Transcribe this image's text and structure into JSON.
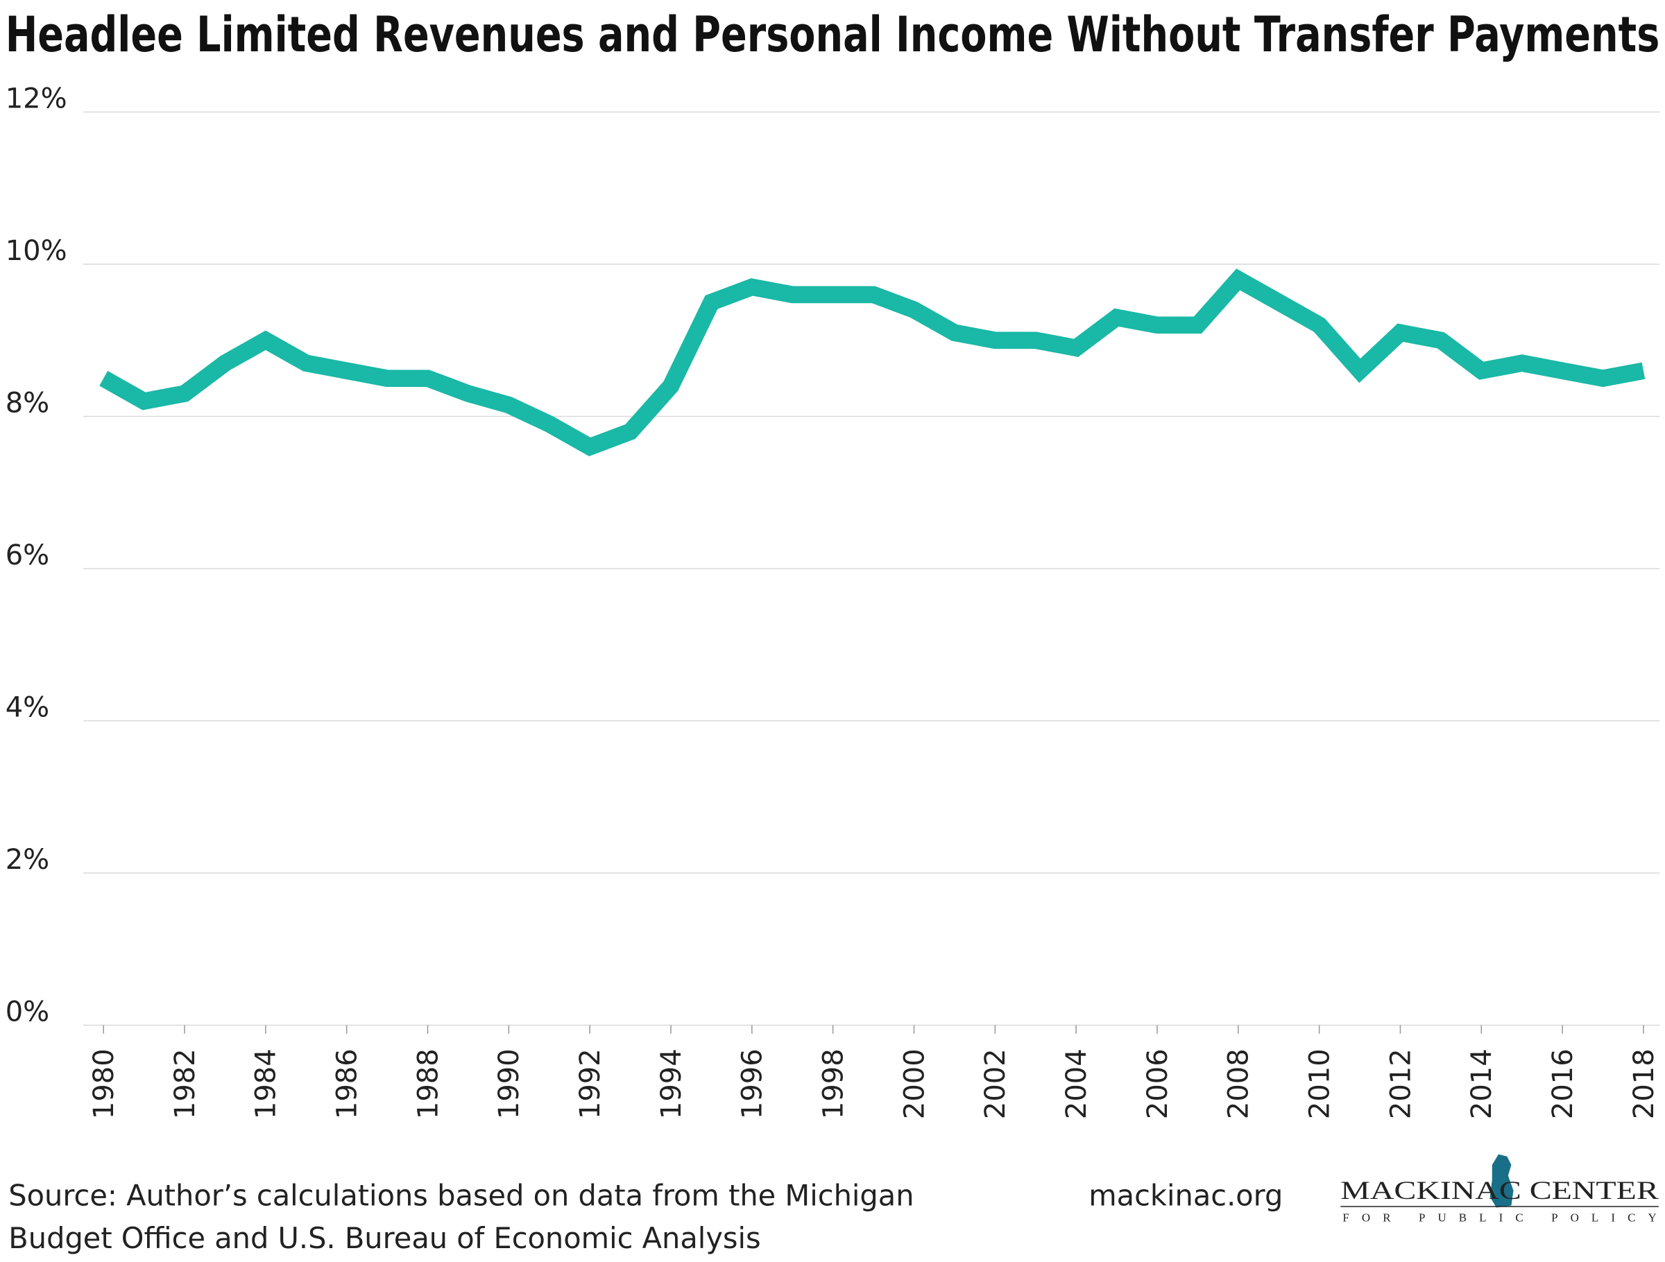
{
  "chart_data": {
    "type": "line",
    "title": "Headlee Limited Revenues and Personal Income Without Transfer Payments",
    "x": [
      1980,
      1981,
      1982,
      1983,
      1984,
      1985,
      1986,
      1987,
      1988,
      1989,
      1990,
      1991,
      1992,
      1993,
      1994,
      1995,
      1996,
      1997,
      1998,
      1999,
      2000,
      2001,
      2002,
      2003,
      2004,
      2005,
      2006,
      2007,
      2008,
      2009,
      2010,
      2011,
      2012,
      2013,
      2014,
      2015,
      2016,
      2017,
      2018
    ],
    "series": [
      {
        "color": "#1ab8a6",
        "values": [
          8.5,
          8.2,
          8.3,
          8.7,
          9.0,
          8.7,
          8.6,
          8.5,
          8.5,
          8.3,
          8.15,
          7.9,
          7.6,
          7.8,
          8.4,
          9.5,
          9.7,
          9.6,
          9.6,
          9.6,
          9.4,
          9.1,
          9.0,
          9.0,
          8.9,
          9.3,
          9.2,
          9.2,
          9.8,
          9.5,
          9.2,
          8.6,
          9.1,
          9.0,
          8.6,
          8.7,
          8.6,
          8.5,
          8.6
        ]
      }
    ],
    "xlim": [
      1979.5,
      2018.4
    ],
    "xticks": [
      1980,
      1982,
      1984,
      1986,
      1988,
      1990,
      1992,
      1994,
      1996,
      1998,
      2000,
      2002,
      2004,
      2006,
      2008,
      2010,
      2012,
      2014,
      2016,
      2018
    ],
    "ylim": [
      0,
      12
    ],
    "yticks": [
      {
        "value": 0,
        "label": "0%"
      },
      {
        "value": 2,
        "label": "2%"
      },
      {
        "value": 4,
        "label": "4%"
      },
      {
        "value": 6,
        "label": "6%"
      },
      {
        "value": 8,
        "label": "8%"
      },
      {
        "value": 10,
        "label": "10%"
      },
      {
        "value": 12,
        "label": "12%"
      }
    ],
    "grid": true,
    "source": [
      "Source: Author’s calculations based on data from the Michigan",
      "Budget Office and U.S. Bureau of Economic Analysis"
    ],
    "website": "mackinac.org",
    "logo": {
      "name": "MACKINAC CENTER",
      "tagline": "FOR PUBLIC POLICY"
    }
  }
}
